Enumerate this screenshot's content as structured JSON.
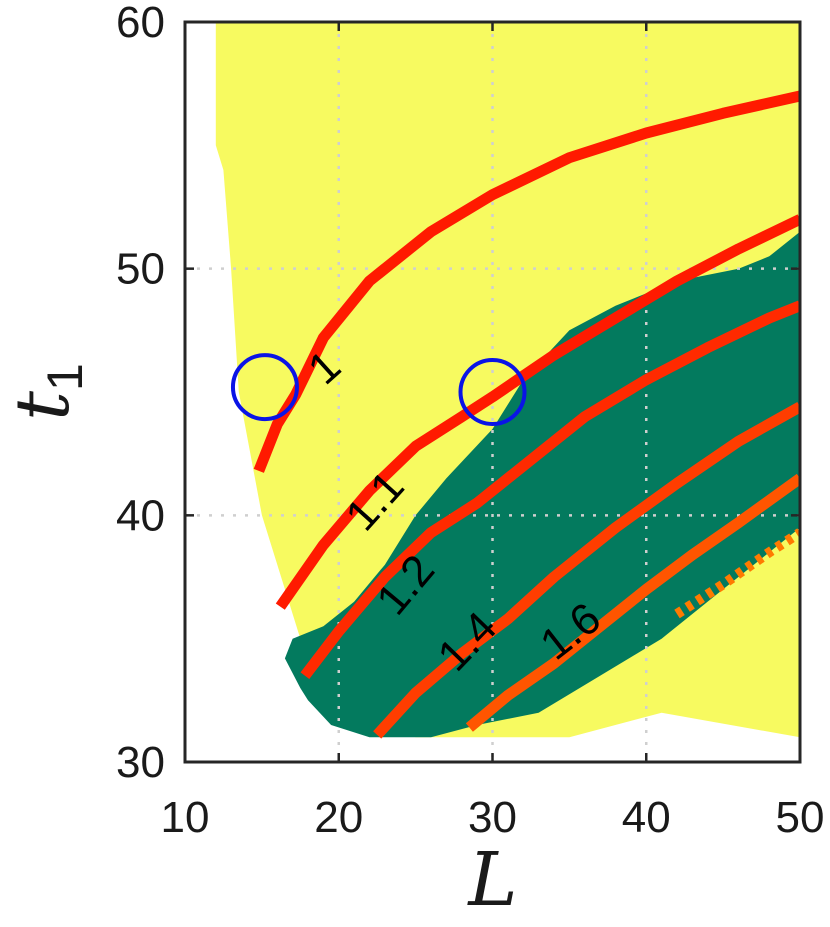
{
  "chart_data": {
    "type": "contour",
    "title": "",
    "xlabel": "L",
    "ylabel": "t",
    "ylabel_subscript": "1",
    "xlim": [
      10,
      50
    ],
    "ylim": [
      30,
      60
    ],
    "xticks": [
      10,
      20,
      30,
      40,
      50
    ],
    "yticks": [
      30,
      40,
      50,
      60
    ],
    "xtick_labels": [
      "10",
      "20",
      "30",
      "40",
      "50"
    ],
    "ytick_labels": [
      "30",
      "40",
      "50",
      "60"
    ],
    "grid": true,
    "colors": {
      "region_yellow": "#f7fa60",
      "region_green": "#037a5e",
      "background": "#ffffff",
      "circle": "#0a14e6",
      "axis": "#262626",
      "grid": "#cfcfcf"
    },
    "regions": [
      {
        "color": "#f7fa60",
        "polygon": [
          [
            12,
            60
          ],
          [
            50,
            60
          ],
          [
            50,
            31
          ],
          [
            41,
            32
          ],
          [
            35,
            31
          ],
          [
            25,
            31
          ],
          [
            21,
            32
          ],
          [
            18,
            34
          ],
          [
            16,
            38
          ],
          [
            15,
            40
          ],
          [
            13.5,
            45
          ],
          [
            13,
            50
          ],
          [
            12.5,
            54
          ],
          [
            12,
            55
          ]
        ]
      },
      {
        "color": "#037a5e",
        "polygon": [
          [
            50,
            51.5
          ],
          [
            48,
            50.5
          ],
          [
            46,
            50
          ],
          [
            42,
            49.5
          ],
          [
            38,
            48.5
          ],
          [
            35,
            47.5
          ],
          [
            32,
            45.5
          ],
          [
            30,
            43.5
          ],
          [
            27,
            41.5
          ],
          [
            25,
            40
          ],
          [
            23,
            38
          ],
          [
            21,
            36.5
          ],
          [
            19,
            35.5
          ],
          [
            17,
            35
          ],
          [
            16.5,
            34.2
          ],
          [
            17.5,
            33
          ],
          [
            18,
            32.5
          ],
          [
            19.5,
            31.5
          ],
          [
            22,
            31
          ],
          [
            26,
            31
          ],
          [
            29,
            31.5
          ],
          [
            33,
            32
          ],
          [
            37,
            33.5
          ],
          [
            41,
            35
          ],
          [
            45,
            37
          ],
          [
            48,
            38.5
          ],
          [
            50,
            39.5
          ]
        ]
      }
    ],
    "contours": [
      {
        "level": "1",
        "color": "#ff1a00",
        "points": [
          [
            14.8,
            41.8
          ],
          [
            16,
            43.7
          ],
          [
            17.2,
            44.9
          ],
          [
            19,
            47.2
          ],
          [
            22,
            49.5
          ],
          [
            26,
            51.5
          ],
          [
            30,
            53
          ],
          [
            35,
            54.5
          ],
          [
            40,
            55.5
          ],
          [
            45,
            56.3
          ],
          [
            50,
            57
          ]
        ],
        "label": {
          "x": 19.2,
          "y": 45.9,
          "angle": -42
        }
      },
      {
        "level": "1.1",
        "color": "#ff1a00",
        "points": [
          [
            16.2,
            36.3
          ],
          [
            19,
            38.8
          ],
          [
            22,
            41
          ],
          [
            25,
            42.8
          ],
          [
            28,
            44
          ],
          [
            30,
            44.8
          ],
          [
            34,
            46.5
          ],
          [
            38,
            48
          ],
          [
            42,
            49.5
          ],
          [
            46,
            50.8
          ],
          [
            50,
            52
          ]
        ],
        "label": {
          "x": 22.5,
          "y": 40.5,
          "angle": -48
        }
      },
      {
        "level": "1.2",
        "color": "#ff2a00",
        "points": [
          [
            17.8,
            33.5
          ],
          [
            20,
            35.3
          ],
          [
            23,
            37.5
          ],
          [
            26,
            39.3
          ],
          [
            29,
            40.5
          ],
          [
            32,
            42
          ],
          [
            36,
            44
          ],
          [
            40,
            45.5
          ],
          [
            44,
            46.8
          ],
          [
            48,
            48
          ],
          [
            50,
            48.5
          ]
        ],
        "label": {
          "x": 24.5,
          "y": 37.1,
          "angle": -50
        }
      },
      {
        "level": "1.4",
        "color": "#ff3d00",
        "points": [
          [
            22.5,
            31.1
          ],
          [
            25,
            32.8
          ],
          [
            28,
            34.4
          ],
          [
            31,
            35.8
          ],
          [
            34,
            37.5
          ],
          [
            38,
            39.5
          ],
          [
            42,
            41.3
          ],
          [
            46,
            43
          ],
          [
            50,
            44.4
          ]
        ],
        "label": {
          "x": 28.5,
          "y": 34.8,
          "angle": -46
        }
      },
      {
        "level": "1.6",
        "color": "#ff5500",
        "points": [
          [
            28.5,
            31.4
          ],
          [
            31,
            32.7
          ],
          [
            34,
            34
          ],
          [
            37,
            35.5
          ],
          [
            40,
            37
          ],
          [
            43,
            38.4
          ],
          [
            46,
            39.7
          ],
          [
            50,
            41.5
          ]
        ],
        "label": {
          "x": 35.2,
          "y": 35.2,
          "angle": -38
        }
      },
      {
        "level": "",
        "color": "#ff7a00",
        "dotted": true,
        "points": [
          [
            42,
            36
          ],
          [
            45,
            37.2
          ],
          [
            48,
            38.5
          ],
          [
            50,
            39.3
          ]
        ]
      }
    ],
    "markers": [
      {
        "x": 15.2,
        "y": 45.2,
        "shape": "circle",
        "color": "#0a14e6"
      },
      {
        "x": 30.0,
        "y": 45.0,
        "shape": "circle",
        "color": "#0a14e6"
      }
    ]
  }
}
